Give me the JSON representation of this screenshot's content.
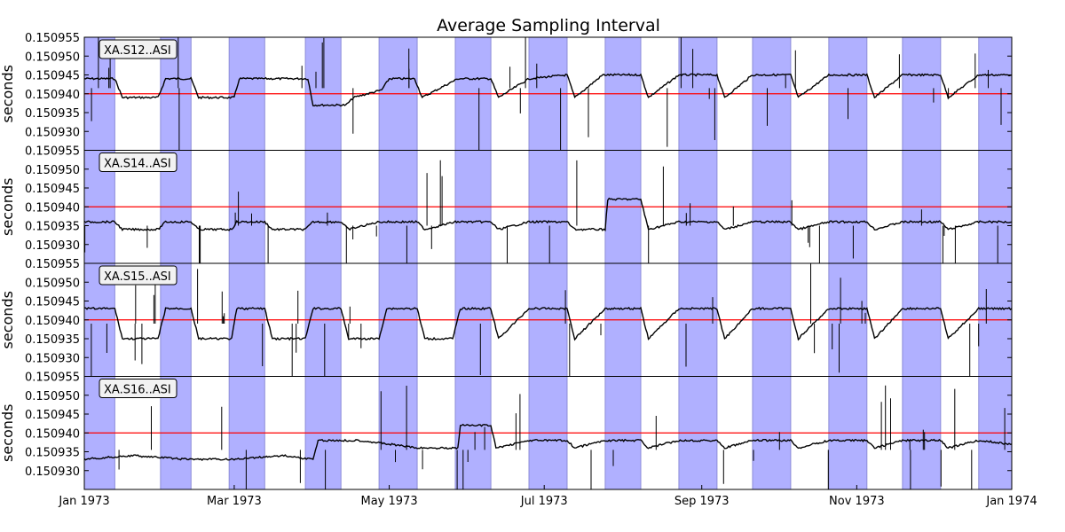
{
  "chart_data": {
    "type": "line",
    "title": "Average Sampling Interval",
    "ylabel": "seconds",
    "xlim": [
      "1973-01-01",
      "1974-01-01"
    ],
    "ylim": [
      0.150925,
      0.150955
    ],
    "x_tick_labels": [
      "Jan 1973",
      "Mar 1973",
      "May 1973",
      "Jul 1973",
      "Sep 1973",
      "Nov 1973",
      "Jan 1974"
    ],
    "x_ticks": [
      "1973-01-01",
      "1973-03-01",
      "1973-05-01",
      "1973-07-01",
      "1973-09-01",
      "1973-11-01",
      "1974-01-01"
    ],
    "y_tick_labels": [
      "0.150930",
      "0.150935",
      "0.150940",
      "0.150945",
      "0.150950",
      "0.150955"
    ],
    "reference_line": {
      "value": 0.15094,
      "color": "#ff0000"
    },
    "shading_color": "#b0b0ff",
    "line_color": "#000000",
    "shaded_periods": [
      [
        "1973-01-01",
        "1973-01-13"
      ],
      [
        "1973-01-31",
        "1973-02-12"
      ],
      [
        "1973-02-27",
        "1973-03-13"
      ],
      [
        "1973-03-29",
        "1973-04-12"
      ],
      [
        "1973-04-27",
        "1973-05-12"
      ],
      [
        "1973-05-27",
        "1973-06-10"
      ],
      [
        "1973-06-25",
        "1973-07-10"
      ],
      [
        "1973-07-25",
        "1973-08-08"
      ],
      [
        "1973-08-23",
        "1973-09-07"
      ],
      [
        "1973-09-21",
        "1973-10-06"
      ],
      [
        "1973-10-21",
        "1973-11-05"
      ],
      [
        "1973-11-19",
        "1973-12-04"
      ],
      [
        "1973-12-19",
        "1974-01-01"
      ]
    ],
    "panels": [
      {
        "station": "XA.S12..ASI",
        "level_shaded": 0.150944,
        "level_unshaded": 0.150939,
        "series": [
          {
            "x": "1973-01-01",
            "y": 0.150944
          },
          {
            "x": "1973-01-13",
            "y": 0.150944
          },
          {
            "x": "1973-01-16",
            "y": 0.150939
          },
          {
            "x": "1973-01-30",
            "y": 0.150939
          },
          {
            "x": "1973-02-02",
            "y": 0.150944
          },
          {
            "x": "1973-02-12",
            "y": 0.150944
          },
          {
            "x": "1973-02-15",
            "y": 0.150939
          },
          {
            "x": "1973-03-01",
            "y": 0.150939
          },
          {
            "x": "1973-03-03",
            "y": 0.150944
          },
          {
            "x": "1973-03-30",
            "y": 0.150944
          },
          {
            "x": "1973-04-01",
            "y": 0.150937
          },
          {
            "x": "1973-04-14",
            "y": 0.150937
          },
          {
            "x": "1973-04-17",
            "y": 0.150939
          },
          {
            "x": "1973-04-28",
            "y": 0.150941
          },
          {
            "x": "1973-05-01",
            "y": 0.150944
          },
          {
            "x": "1973-05-11",
            "y": 0.150944
          },
          {
            "x": "1973-05-14",
            "y": 0.150939
          },
          {
            "x": "1973-05-28",
            "y": 0.150944
          },
          {
            "x": "1973-06-10",
            "y": 0.150944
          },
          {
            "x": "1973-06-13",
            "y": 0.150939
          },
          {
            "x": "1973-06-25",
            "y": 0.150944
          },
          {
            "x": "1973-07-10",
            "y": 0.150945
          },
          {
            "x": "1973-07-13",
            "y": 0.150939
          },
          {
            "x": "1973-07-24",
            "y": 0.150945
          },
          {
            "x": "1973-08-08",
            "y": 0.150945
          },
          {
            "x": "1973-08-11",
            "y": 0.150939
          },
          {
            "x": "1973-08-23",
            "y": 0.150945
          },
          {
            "x": "1973-09-07",
            "y": 0.150945
          },
          {
            "x": "1973-09-10",
            "y": 0.150939
          },
          {
            "x": "1973-09-21",
            "y": 0.150945
          },
          {
            "x": "1973-10-06",
            "y": 0.150945
          },
          {
            "x": "1973-10-09",
            "y": 0.150939
          },
          {
            "x": "1973-10-21",
            "y": 0.150945
          },
          {
            "x": "1973-11-05",
            "y": 0.150945
          },
          {
            "x": "1973-11-08",
            "y": 0.150939
          },
          {
            "x": "1973-11-19",
            "y": 0.150945
          },
          {
            "x": "1973-12-04",
            "y": 0.150945
          },
          {
            "x": "1973-12-07",
            "y": 0.150939
          },
          {
            "x": "1973-12-19",
            "y": 0.150945
          },
          {
            "x": "1974-01-01",
            "y": 0.150945
          }
        ]
      },
      {
        "station": "XA.S14..ASI",
        "level_shaded": 0.150936,
        "level_unshaded": 0.150934,
        "series": [
          {
            "x": "1973-01-01",
            "y": 0.150936
          },
          {
            "x": "1973-01-13",
            "y": 0.150936
          },
          {
            "x": "1973-01-16",
            "y": 0.150934
          },
          {
            "x": "1973-01-30",
            "y": 0.150934
          },
          {
            "x": "1973-02-02",
            "y": 0.150936
          },
          {
            "x": "1973-02-12",
            "y": 0.150936
          },
          {
            "x": "1973-02-15",
            "y": 0.150934
          },
          {
            "x": "1973-02-28",
            "y": 0.150934
          },
          {
            "x": "1973-03-02",
            "y": 0.150936
          },
          {
            "x": "1973-03-13",
            "y": 0.150936
          },
          {
            "x": "1973-03-16",
            "y": 0.150934
          },
          {
            "x": "1973-03-29",
            "y": 0.150934
          },
          {
            "x": "1973-04-01",
            "y": 0.150936
          },
          {
            "x": "1973-04-12",
            "y": 0.150936
          },
          {
            "x": "1973-04-15",
            "y": 0.150934
          },
          {
            "x": "1973-04-27",
            "y": 0.150936
          },
          {
            "x": "1973-05-12",
            "y": 0.150936
          },
          {
            "x": "1973-05-15",
            "y": 0.150934
          },
          {
            "x": "1973-05-27",
            "y": 0.150936
          },
          {
            "x": "1973-06-10",
            "y": 0.150936
          },
          {
            "x": "1973-06-13",
            "y": 0.150934
          },
          {
            "x": "1973-06-25",
            "y": 0.150936
          },
          {
            "x": "1973-07-10",
            "y": 0.150936
          },
          {
            "x": "1973-07-13",
            "y": 0.150934
          },
          {
            "x": "1973-07-25",
            "y": 0.150934
          },
          {
            "x": "1973-07-26",
            "y": 0.150942
          },
          {
            "x": "1973-08-08",
            "y": 0.150942
          },
          {
            "x": "1973-08-11",
            "y": 0.150934
          },
          {
            "x": "1973-08-23",
            "y": 0.150936
          },
          {
            "x": "1973-09-07",
            "y": 0.150936
          },
          {
            "x": "1973-09-10",
            "y": 0.150934
          },
          {
            "x": "1973-09-21",
            "y": 0.150936
          },
          {
            "x": "1973-10-06",
            "y": 0.150936
          },
          {
            "x": "1973-10-09",
            "y": 0.150934
          },
          {
            "x": "1973-10-21",
            "y": 0.150936
          },
          {
            "x": "1973-11-05",
            "y": 0.150936
          },
          {
            "x": "1973-11-08",
            "y": 0.150934
          },
          {
            "x": "1973-11-19",
            "y": 0.150936
          },
          {
            "x": "1973-12-04",
            "y": 0.150936
          },
          {
            "x": "1973-12-07",
            "y": 0.150934
          },
          {
            "x": "1973-12-19",
            "y": 0.150936
          },
          {
            "x": "1974-01-01",
            "y": 0.150936
          }
        ]
      },
      {
        "station": "XA.S15..ASI",
        "level_shaded": 0.150943,
        "level_unshaded": 0.150935,
        "series": [
          {
            "x": "1973-01-01",
            "y": 0.150943
          },
          {
            "x": "1973-01-13",
            "y": 0.150943
          },
          {
            "x": "1973-01-16",
            "y": 0.150935
          },
          {
            "x": "1973-01-30",
            "y": 0.150935
          },
          {
            "x": "1973-02-02",
            "y": 0.150943
          },
          {
            "x": "1973-02-12",
            "y": 0.150943
          },
          {
            "x": "1973-02-15",
            "y": 0.150935
          },
          {
            "x": "1973-02-28",
            "y": 0.150935
          },
          {
            "x": "1973-03-02",
            "y": 0.150943
          },
          {
            "x": "1973-03-13",
            "y": 0.150943
          },
          {
            "x": "1973-03-16",
            "y": 0.150935
          },
          {
            "x": "1973-03-29",
            "y": 0.150935
          },
          {
            "x": "1973-04-01",
            "y": 0.150943
          },
          {
            "x": "1973-04-12",
            "y": 0.150943
          },
          {
            "x": "1973-04-15",
            "y": 0.150935
          },
          {
            "x": "1973-04-27",
            "y": 0.150935
          },
          {
            "x": "1973-04-30",
            "y": 0.150943
          },
          {
            "x": "1973-05-12",
            "y": 0.150943
          },
          {
            "x": "1973-05-15",
            "y": 0.150935
          },
          {
            "x": "1973-05-26",
            "y": 0.150935
          },
          {
            "x": "1973-05-29",
            "y": 0.150943
          },
          {
            "x": "1973-06-10",
            "y": 0.150943
          },
          {
            "x": "1973-06-13",
            "y": 0.150935
          },
          {
            "x": "1973-06-25",
            "y": 0.150943
          },
          {
            "x": "1973-07-10",
            "y": 0.150943
          },
          {
            "x": "1973-07-13",
            "y": 0.150935
          },
          {
            "x": "1973-07-25",
            "y": 0.150943
          },
          {
            "x": "1973-08-08",
            "y": 0.150943
          },
          {
            "x": "1973-08-11",
            "y": 0.150935
          },
          {
            "x": "1973-08-23",
            "y": 0.150943
          },
          {
            "x": "1973-09-07",
            "y": 0.150943
          },
          {
            "x": "1973-09-10",
            "y": 0.150935
          },
          {
            "x": "1973-09-21",
            "y": 0.150943
          },
          {
            "x": "1973-10-06",
            "y": 0.150943
          },
          {
            "x": "1973-10-09",
            "y": 0.150935
          },
          {
            "x": "1973-10-21",
            "y": 0.150943
          },
          {
            "x": "1973-11-05",
            "y": 0.150943
          },
          {
            "x": "1973-11-08",
            "y": 0.150935
          },
          {
            "x": "1973-11-19",
            "y": 0.150943
          },
          {
            "x": "1973-12-04",
            "y": 0.150943
          },
          {
            "x": "1973-12-07",
            "y": 0.150935
          },
          {
            "x": "1973-12-19",
            "y": 0.150943
          },
          {
            "x": "1974-01-01",
            "y": 0.150943
          }
        ]
      },
      {
        "station": "XA.S16..ASI",
        "level_shaded": 0.150938,
        "level_unshaded": 0.150933,
        "series": [
          {
            "x": "1973-01-01",
            "y": 0.150933
          },
          {
            "x": "1973-01-20",
            "y": 0.150934
          },
          {
            "x": "1973-02-10",
            "y": 0.150933
          },
          {
            "x": "1973-03-01",
            "y": 0.150933
          },
          {
            "x": "1973-03-20",
            "y": 0.150934
          },
          {
            "x": "1973-04-01",
            "y": 0.150933
          },
          {
            "x": "1973-04-03",
            "y": 0.150938
          },
          {
            "x": "1973-04-20",
            "y": 0.150938
          },
          {
            "x": "1973-05-01",
            "y": 0.150937
          },
          {
            "x": "1973-05-12",
            "y": 0.150936
          },
          {
            "x": "1973-05-28",
            "y": 0.150936
          },
          {
            "x": "1973-05-29",
            "y": 0.150942
          },
          {
            "x": "1973-06-10",
            "y": 0.150942
          },
          {
            "x": "1973-06-12",
            "y": 0.150936
          },
          {
            "x": "1973-06-25",
            "y": 0.150938
          },
          {
            "x": "1973-07-10",
            "y": 0.150938
          },
          {
            "x": "1973-07-13",
            "y": 0.150936
          },
          {
            "x": "1973-07-25",
            "y": 0.150938
          },
          {
            "x": "1973-08-08",
            "y": 0.150938
          },
          {
            "x": "1973-08-11",
            "y": 0.150936
          },
          {
            "x": "1973-08-23",
            "y": 0.150938
          },
          {
            "x": "1973-09-07",
            "y": 0.150938
          },
          {
            "x": "1973-09-10",
            "y": 0.150936
          },
          {
            "x": "1973-09-21",
            "y": 0.150938
          },
          {
            "x": "1973-10-06",
            "y": 0.150938
          },
          {
            "x": "1973-10-09",
            "y": 0.150936
          },
          {
            "x": "1973-10-21",
            "y": 0.150938
          },
          {
            "x": "1973-11-05",
            "y": 0.150938
          },
          {
            "x": "1973-11-08",
            "y": 0.150936
          },
          {
            "x": "1973-11-19",
            "y": 0.150938
          },
          {
            "x": "1973-12-04",
            "y": 0.150938
          },
          {
            "x": "1973-12-07",
            "y": 0.150936
          },
          {
            "x": "1973-12-19",
            "y": 0.150938
          },
          {
            "x": "1974-01-01",
            "y": 0.150937
          }
        ]
      }
    ]
  }
}
